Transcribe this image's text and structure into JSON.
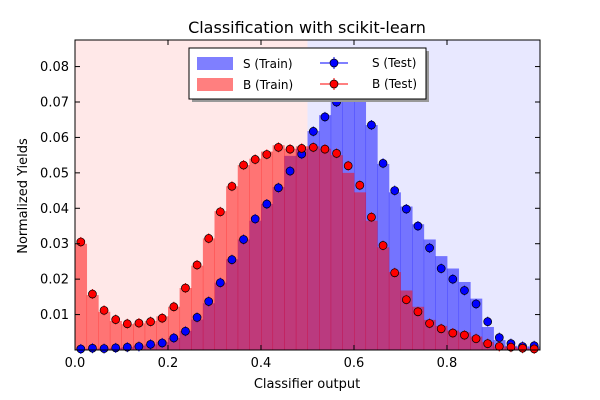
{
  "chart_data": {
    "type": "bar",
    "title": "Classification with scikit-learn",
    "xlabel": "Classifier output",
    "ylabel": "Normalized Yields",
    "xlim": [
      0.0,
      1.0
    ],
    "ylim": [
      0.0,
      0.0875
    ],
    "xticks": [
      "0.0",
      "0.2",
      "0.4",
      "0.6",
      "0.8"
    ],
    "yticks": [
      "0.01",
      "0.02",
      "0.03",
      "0.04",
      "0.05",
      "0.06",
      "0.07",
      "0.08"
    ],
    "grid": false,
    "legend_position": "top-center",
    "bin_edges": [
      0.0,
      0.025,
      0.05,
      0.075,
      0.1,
      0.125,
      0.15,
      0.175,
      0.2,
      0.225,
      0.25,
      0.275,
      0.3,
      0.325,
      0.35,
      0.375,
      0.4,
      0.425,
      0.45,
      0.475,
      0.5,
      0.525,
      0.55,
      0.575,
      0.6,
      0.625,
      0.65,
      0.675,
      0.7,
      0.725,
      0.75,
      0.775,
      0.8,
      0.825,
      0.85,
      0.875,
      0.9,
      0.925,
      0.95,
      0.975,
      1.0
    ],
    "decision_regions": [
      {
        "side": "B",
        "range": [
          0.0,
          0.5
        ],
        "color": "#ff0000"
      },
      {
        "side": "S",
        "range": [
          0.5,
          1.0
        ],
        "color": "#0000ff"
      }
    ],
    "series": [
      {
        "name": "S (Train)",
        "kind": "hist",
        "color": "#0000ff",
        "values": [
          0.0003,
          0.0004,
          0.0004,
          0.0006,
          0.0008,
          0.0012,
          0.0016,
          0.0022,
          0.0034,
          0.0054,
          0.0086,
          0.0132,
          0.019,
          0.0256,
          0.0312,
          0.0365,
          0.0412,
          0.046,
          0.0548,
          0.0568,
          0.0618,
          0.0663,
          0.0702,
          0.0719,
          0.072,
          0.0635,
          0.0525,
          0.0445,
          0.0405,
          0.0355,
          0.0312,
          0.0265,
          0.023,
          0.0192,
          0.0145,
          0.0065,
          0.0028,
          0.0012,
          0.001,
          0.001
        ]
      },
      {
        "name": "B (Train)",
        "kind": "hist",
        "color": "#ff0000",
        "values": [
          0.03,
          0.0155,
          0.0108,
          0.0082,
          0.0073,
          0.0075,
          0.0082,
          0.0095,
          0.0122,
          0.0175,
          0.0238,
          0.0315,
          0.0392,
          0.0462,
          0.0522,
          0.054,
          0.056,
          0.0578,
          0.0568,
          0.0575,
          0.0575,
          0.0568,
          0.055,
          0.05,
          0.0445,
          0.0365,
          0.029,
          0.022,
          0.0168,
          0.0122,
          0.0085,
          0.0068,
          0.0055,
          0.005,
          0.0038,
          0.0022,
          0.001,
          0.0008,
          0.0005,
          0.0003
        ]
      },
      {
        "name": "S (Test)",
        "kind": "points",
        "color": "#0000ff",
        "values": [
          0.0003,
          0.0005,
          0.0004,
          0.0006,
          0.0008,
          0.001,
          0.0016,
          0.002,
          0.0034,
          0.0053,
          0.0092,
          0.0137,
          0.019,
          0.0255,
          0.0312,
          0.037,
          0.0412,
          0.0458,
          0.0505,
          0.0553,
          0.0617,
          0.0658,
          0.07,
          0.073,
          0.0728,
          0.0635,
          0.0527,
          0.045,
          0.0398,
          0.035,
          0.0288,
          0.023,
          0.02,
          0.0168,
          0.013,
          0.008,
          0.0035,
          0.0018,
          0.001,
          0.0012
        ]
      },
      {
        "name": "B (Test)",
        "kind": "points",
        "color": "#ff0000",
        "values": [
          0.0305,
          0.0158,
          0.0112,
          0.0086,
          0.0074,
          0.0076,
          0.008,
          0.009,
          0.0122,
          0.0175,
          0.024,
          0.0315,
          0.039,
          0.0462,
          0.0522,
          0.0538,
          0.0552,
          0.0572,
          0.0567,
          0.0569,
          0.0572,
          0.0567,
          0.0555,
          0.052,
          0.0465,
          0.0375,
          0.0295,
          0.0218,
          0.0142,
          0.0108,
          0.0075,
          0.006,
          0.0048,
          0.0042,
          0.0032,
          0.0018,
          0.001,
          0.0008,
          0.0005,
          0.0003
        ]
      }
    ]
  }
}
